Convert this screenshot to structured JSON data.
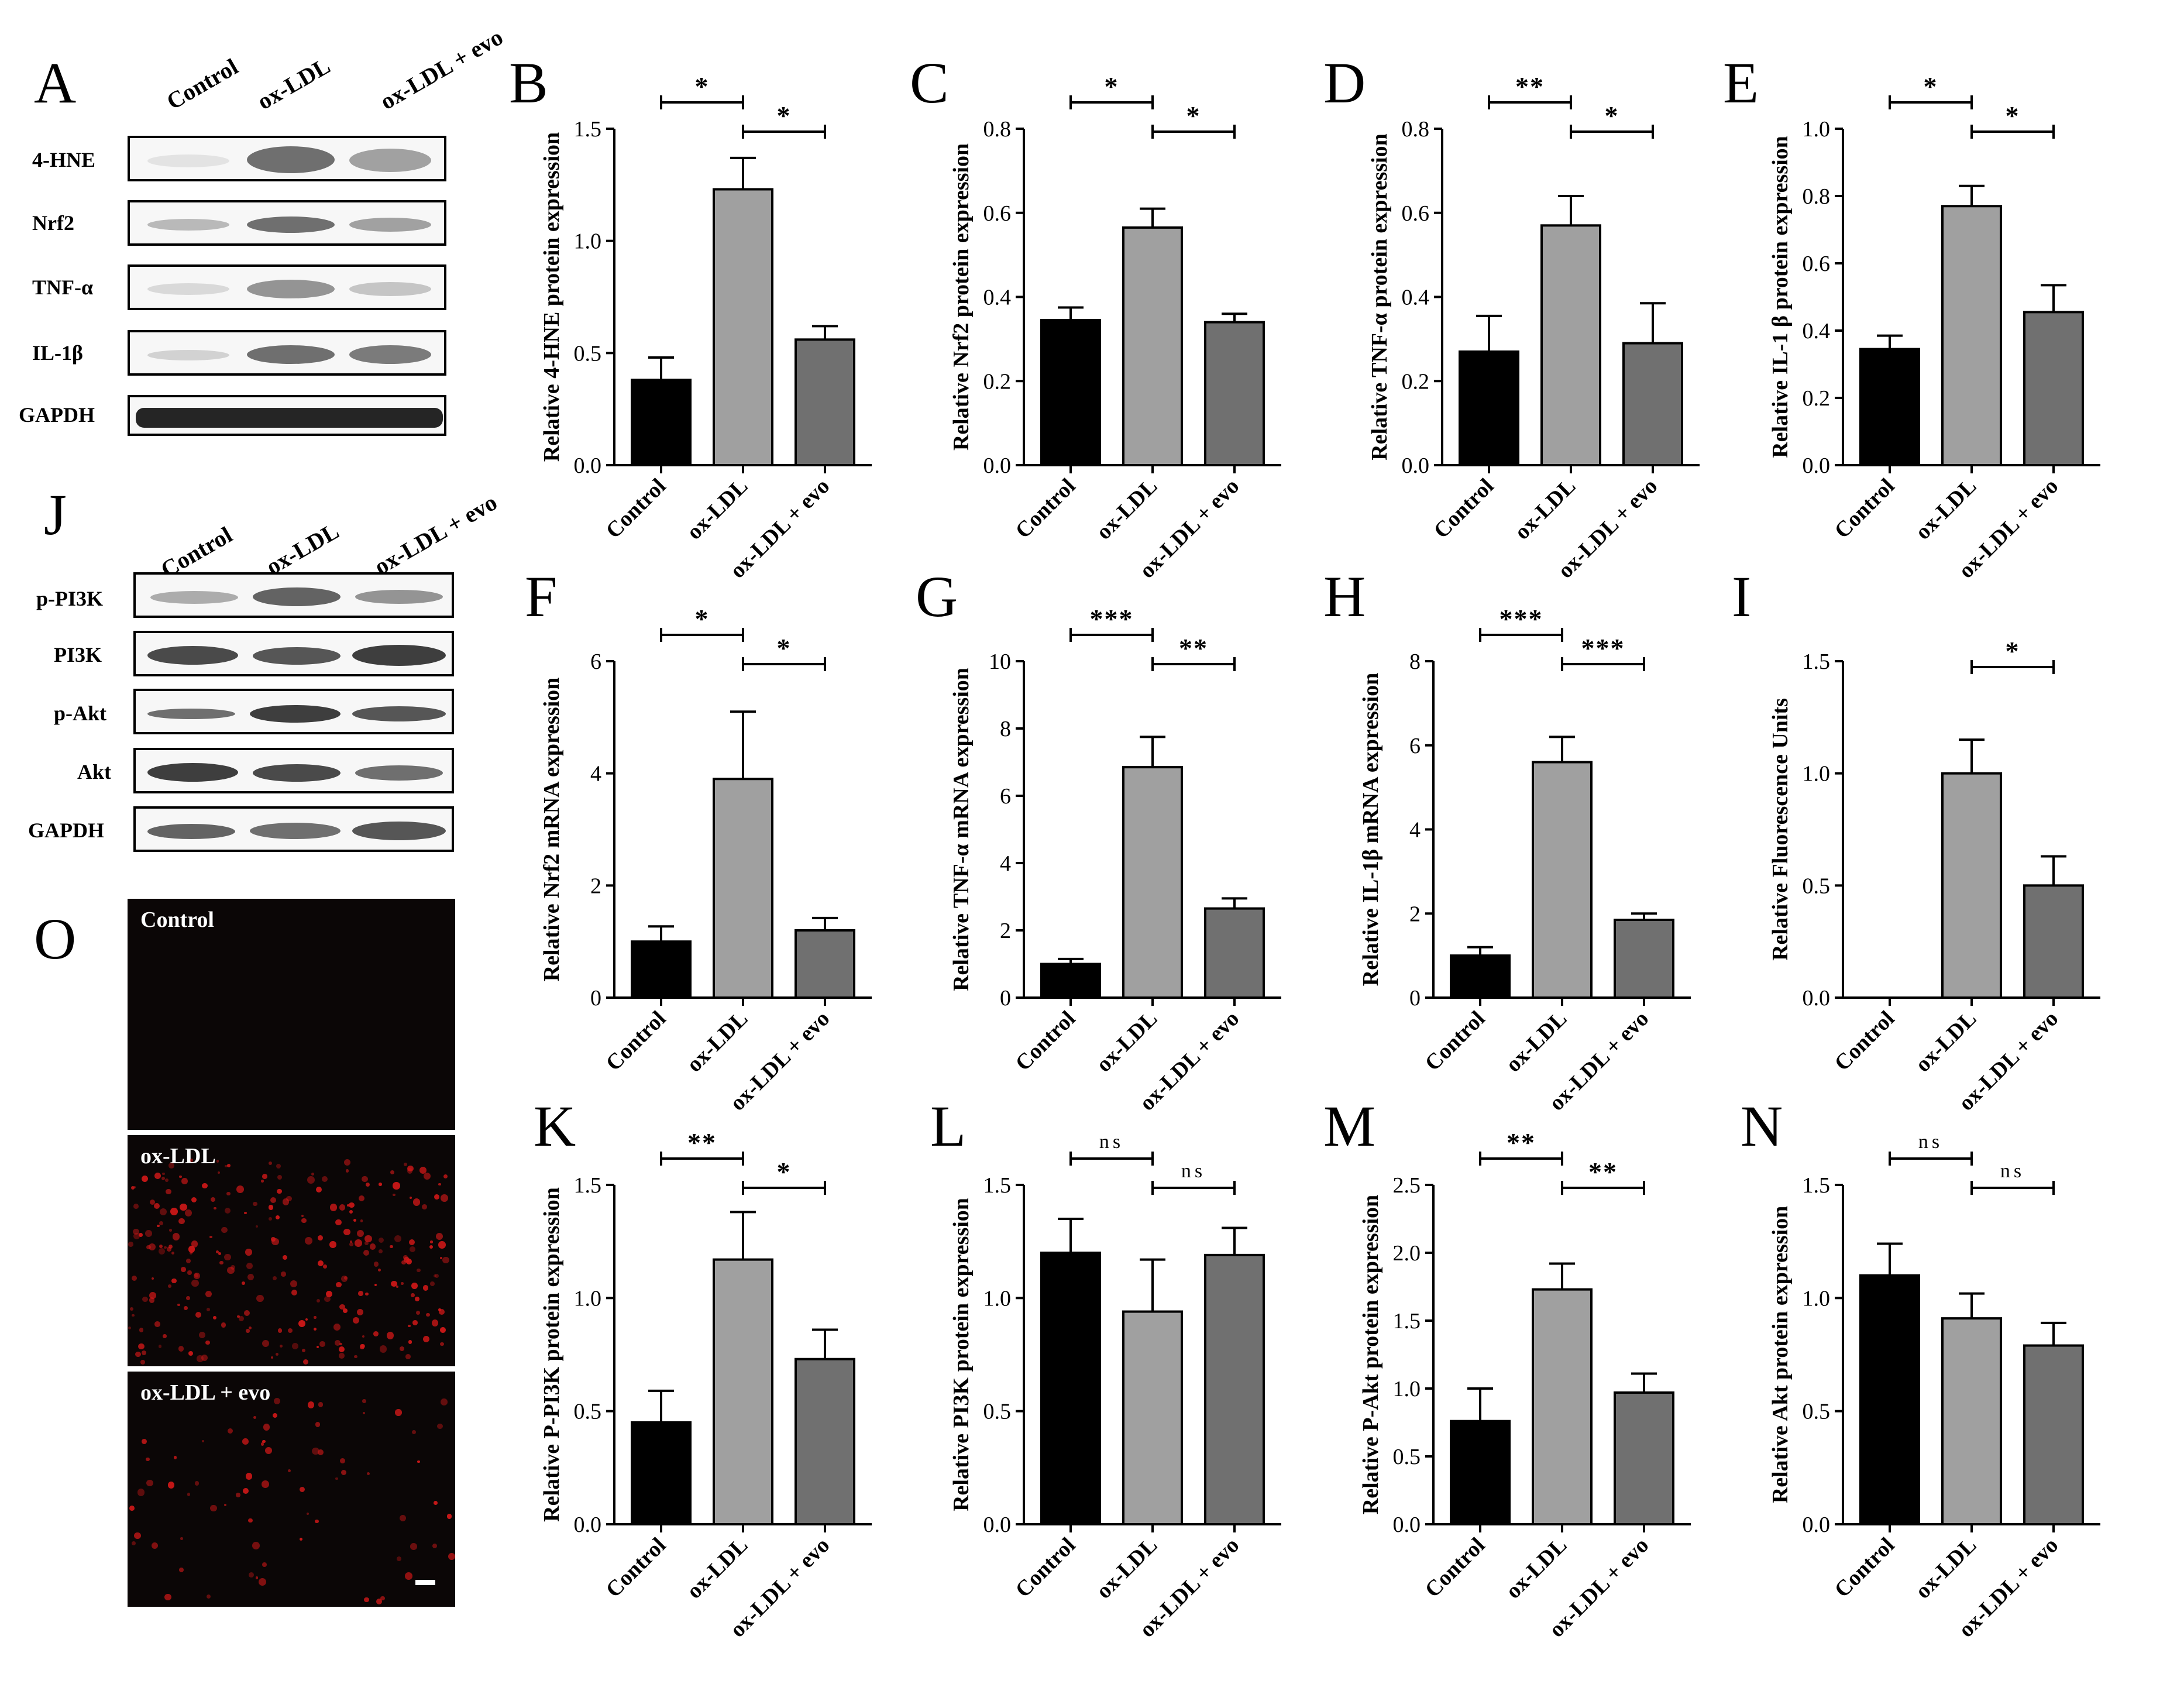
{
  "panel_letters": {
    "A": "A",
    "B": "B",
    "C": "C",
    "D": "D",
    "E": "E",
    "F": "F",
    "G": "G",
    "H": "H",
    "I": "I",
    "J": "J",
    "K": "K",
    "L": "L",
    "M": "M",
    "N": "N",
    "O": "O"
  },
  "blot_A": {
    "headers": [
      "Control",
      "ox-LDL",
      "ox-LDL + evo"
    ],
    "rows": [
      "4-HNE",
      "Nrf2",
      "TNF-α",
      "IL-1β",
      "GAPDH"
    ]
  },
  "blot_J": {
    "headers": [
      "Control",
      "ox-LDL",
      "ox-LDL + evo"
    ],
    "rows": [
      "p-PI3K",
      "PI3K",
      "p-Akt",
      "Akt",
      "GAPDH"
    ]
  },
  "fluorescence": {
    "panels": [
      "Control",
      "ox-LDL",
      "ox-LDL + evo"
    ]
  },
  "colors": {
    "control": "#000000",
    "oxldl": "#a0a0a0",
    "evo": "#707070"
  },
  "chart_data": [
    {
      "id": "B",
      "type": "bar",
      "categories": [
        "Control",
        "ox-LDL",
        "ox-LDL + evo"
      ],
      "values": [
        0.38,
        1.23,
        0.56
      ],
      "errors": [
        0.1,
        0.14,
        0.06
      ],
      "ylabel": "Relative 4-HNE protein expression",
      "ylim": [
        0,
        1.5
      ],
      "yticks": [
        "0.0",
        "0.5",
        "1.0",
        "1.5"
      ],
      "significance": [
        {
          "pair": [
            0,
            1
          ],
          "label": "*"
        },
        {
          "pair": [
            1,
            2
          ],
          "label": "*"
        }
      ]
    },
    {
      "id": "C",
      "type": "bar",
      "categories": [
        "Control",
        "ox-LDL",
        "ox-LDL + evo"
      ],
      "values": [
        0.345,
        0.565,
        0.34
      ],
      "errors": [
        0.03,
        0.045,
        0.02
      ],
      "ylabel": "Relative Nrf2 protein expression",
      "ylim": [
        0,
        0.8
      ],
      "yticks": [
        "0.0",
        "0.2",
        "0.4",
        "0.6",
        "0.8"
      ],
      "significance": [
        {
          "pair": [
            0,
            1
          ],
          "label": "*"
        },
        {
          "pair": [
            1,
            2
          ],
          "label": "*"
        }
      ]
    },
    {
      "id": "D",
      "type": "bar",
      "categories": [
        "Control",
        "ox-LDL",
        "ox-LDL + evo"
      ],
      "values": [
        0.27,
        0.57,
        0.29
      ],
      "errors": [
        0.085,
        0.07,
        0.095
      ],
      "ylabel": "Relative TNF-α protein expression",
      "ylim": [
        0,
        0.8
      ],
      "yticks": [
        "0.0",
        "0.2",
        "0.4",
        "0.6",
        "0.8"
      ],
      "significance": [
        {
          "pair": [
            0,
            1
          ],
          "label": "**"
        },
        {
          "pair": [
            1,
            2
          ],
          "label": "*"
        }
      ]
    },
    {
      "id": "E",
      "type": "bar",
      "categories": [
        "Control",
        "ox-LDL",
        "ox-LDL + evo"
      ],
      "values": [
        0.345,
        0.77,
        0.455
      ],
      "errors": [
        0.04,
        0.06,
        0.08
      ],
      "ylabel": "Relative IL-1 β protein expression",
      "ylim": [
        0,
        1.0
      ],
      "yticks": [
        "0.0",
        "0.2",
        "0.4",
        "0.6",
        "0.8",
        "1.0"
      ],
      "significance": [
        {
          "pair": [
            0,
            1
          ],
          "label": "*"
        },
        {
          "pair": [
            1,
            2
          ],
          "label": "*"
        }
      ]
    },
    {
      "id": "F",
      "type": "bar",
      "categories": [
        "Control",
        "ox-LDL",
        "ox-LDL + evo"
      ],
      "values": [
        1.0,
        3.9,
        1.2
      ],
      "errors": [
        0.27,
        1.2,
        0.22
      ],
      "ylabel": "Relative Nrf2 mRNA expression",
      "ylim": [
        0,
        6
      ],
      "yticks": [
        "0",
        "2",
        "4",
        "6"
      ],
      "significance": [
        {
          "pair": [
            0,
            1
          ],
          "label": "*"
        },
        {
          "pair": [
            1,
            2
          ],
          "label": "*"
        }
      ]
    },
    {
      "id": "G",
      "type": "bar",
      "categories": [
        "Control",
        "ox-LDL",
        "ox-LDL + evo"
      ],
      "values": [
        1.0,
        6.85,
        2.65
      ],
      "errors": [
        0.15,
        0.9,
        0.3
      ],
      "ylabel": "Relative TNF-α mRNA expression",
      "ylim": [
        0,
        10
      ],
      "yticks": [
        "0",
        "2",
        "4",
        "6",
        "8",
        "10"
      ],
      "significance": [
        {
          "pair": [
            0,
            1
          ],
          "label": "***"
        },
        {
          "pair": [
            1,
            2
          ],
          "label": "**"
        }
      ]
    },
    {
      "id": "H",
      "type": "bar",
      "categories": [
        "Control",
        "ox-LDL",
        "ox-LDL + evo"
      ],
      "values": [
        1.0,
        5.6,
        1.85
      ],
      "errors": [
        0.2,
        0.6,
        0.15
      ],
      "ylabel": "Relative IL-1β mRNA expression",
      "ylim": [
        0,
        8
      ],
      "yticks": [
        "0",
        "2",
        "4",
        "6",
        "8"
      ],
      "significance": [
        {
          "pair": [
            0,
            1
          ],
          "label": "***"
        },
        {
          "pair": [
            1,
            2
          ],
          "label": "***"
        }
      ]
    },
    {
      "id": "I",
      "type": "bar",
      "categories": [
        "Control",
        "ox-LDL",
        "ox-LDL + evo"
      ],
      "values": [
        0.0,
        1.0,
        0.5
      ],
      "errors": [
        0,
        0.15,
        0.13
      ],
      "ylabel": "Relative Fluorescence Units",
      "ylim": [
        0,
        1.5
      ],
      "yticks": [
        "0.0",
        "0.5",
        "1.0",
        "1.5"
      ],
      "significance": [
        {
          "pair": [
            1,
            2
          ],
          "label": "*"
        }
      ]
    },
    {
      "id": "K",
      "type": "bar",
      "categories": [
        "Control",
        "ox-LDL",
        "ox-LDL + evo"
      ],
      "values": [
        0.45,
        1.17,
        0.73
      ],
      "errors": [
        0.14,
        0.21,
        0.13
      ],
      "ylabel": "Relative P-PI3K protein expression",
      "ylim": [
        0,
        1.5
      ],
      "yticks": [
        "0.0",
        "0.5",
        "1.0",
        "1.5"
      ],
      "significance": [
        {
          "pair": [
            0,
            1
          ],
          "label": "**"
        },
        {
          "pair": [
            1,
            2
          ],
          "label": "*"
        }
      ]
    },
    {
      "id": "L",
      "type": "bar",
      "categories": [
        "Control",
        "ox-LDL",
        "ox-LDL + evo"
      ],
      "values": [
        1.2,
        0.94,
        1.19
      ],
      "errors": [
        0.15,
        0.23,
        0.12
      ],
      "ylabel": "Relative PI3K protein expression",
      "ylim": [
        0,
        1.5
      ],
      "yticks": [
        "0.0",
        "0.5",
        "1.0",
        "1.5"
      ],
      "significance": [
        {
          "pair": [
            0,
            1
          ],
          "label": "ns"
        },
        {
          "pair": [
            1,
            2
          ],
          "label": "ns"
        }
      ]
    },
    {
      "id": "M",
      "type": "bar",
      "categories": [
        "Control",
        "ox-LDL",
        "ox-LDL + evo"
      ],
      "values": [
        0.76,
        1.73,
        0.97
      ],
      "errors": [
        0.24,
        0.19,
        0.14
      ],
      "ylabel": "Relative P-Akt protein expression",
      "ylim": [
        0,
        2.5
      ],
      "yticks": [
        "0.0",
        "0.5",
        "1.0",
        "1.5",
        "2.0",
        "2.5"
      ],
      "significance": [
        {
          "pair": [
            0,
            1
          ],
          "label": "**"
        },
        {
          "pair": [
            1,
            2
          ],
          "label": "**"
        }
      ]
    },
    {
      "id": "N",
      "type": "bar",
      "categories": [
        "Control",
        "ox-LDL",
        "ox-LDL + evo"
      ],
      "values": [
        1.1,
        0.91,
        0.79
      ],
      "errors": [
        0.14,
        0.11,
        0.1
      ],
      "ylabel": "Relative Akt protein expression",
      "ylim": [
        0,
        1.5
      ],
      "yticks": [
        "0.0",
        "0.5",
        "1.0",
        "1.5"
      ],
      "significance": [
        {
          "pair": [
            0,
            1
          ],
          "label": "ns"
        },
        {
          "pair": [
            1,
            2
          ],
          "label": "ns"
        }
      ]
    }
  ]
}
